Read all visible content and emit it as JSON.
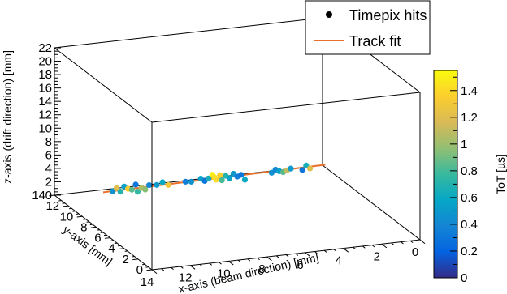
{
  "chart_data": {
    "type": "scatter",
    "projection": "3d-box",
    "axes": {
      "x": {
        "label": "x-axis (beam direction) [mm]",
        "range": [
          14,
          0
        ],
        "ticks": [
          "14",
          "12",
          "10",
          "8",
          "6",
          "4",
          "2",
          "0"
        ]
      },
      "y": {
        "label": "y-axis [mm]",
        "range": [
          0,
          14
        ],
        "ticks": [
          "0",
          "2",
          "4",
          "6",
          "8",
          "10",
          "12",
          "14"
        ]
      },
      "z": {
        "label": "z-axis (drift direction) [mm]",
        "range": [
          0,
          22
        ],
        "ticks": [
          "0",
          "2",
          "4",
          "6",
          "8",
          "10",
          "12",
          "14",
          "16",
          "18",
          "20",
          "22"
        ]
      }
    },
    "colorbar": {
      "label": "ToT [µs]",
      "range": [
        0,
        1.55
      ],
      "ticks": [
        "0",
        "0.2",
        "0.4",
        "0.6",
        "0.8",
        "1",
        "1.2",
        "1.4"
      ],
      "colors": [
        "#352a87",
        "#0363e1",
        "#1485d4",
        "#06a7c6",
        "#38b99e",
        "#92bf73",
        "#d9ba56",
        "#fcce2e",
        "#f9fb0e"
      ]
    },
    "legend": {
      "position": "top-right",
      "entries": [
        {
          "label": "Timepix hits",
          "marker": "dot",
          "color": "#000000"
        },
        {
          "label": "Track fit",
          "marker": "line",
          "color": "#e8702a"
        }
      ]
    },
    "series": [
      {
        "name": "Timepix hits",
        "points": [
          {
            "x": 13.5,
            "y": 7,
            "z": 6.0,
            "tot": 0.45
          },
          {
            "x": 13.3,
            "y": 7,
            "z": 6.4,
            "tot": 1.2
          },
          {
            "x": 13.1,
            "y": 7,
            "z": 5.8,
            "tot": 0.7
          },
          {
            "x": 12.9,
            "y": 7,
            "z": 6.5,
            "tot": 0.55
          },
          {
            "x": 12.7,
            "y": 7,
            "z": 6.1,
            "tot": 1.35
          },
          {
            "x": 12.5,
            "y": 7,
            "z": 5.9,
            "tot": 0.85
          },
          {
            "x": 12.3,
            "y": 7,
            "z": 6.6,
            "tot": 0.3
          },
          {
            "x": 12.2,
            "y": 7,
            "z": 5.5,
            "tot": 0.75
          },
          {
            "x": 12.0,
            "y": 7,
            "z": 6.0,
            "tot": 1.05
          },
          {
            "x": 11.8,
            "y": 7,
            "z": 5.7,
            "tot": 0.95
          },
          {
            "x": 11.6,
            "y": 7,
            "z": 6.3,
            "tot": 0.4
          },
          {
            "x": 11.2,
            "y": 7,
            "z": 6.2,
            "tot": 0.5
          },
          {
            "x": 10.9,
            "y": 7,
            "z": 6.5,
            "tot": 0.6
          },
          {
            "x": 10.6,
            "y": 7,
            "z": 6.0,
            "tot": 1.3
          },
          {
            "x": 9.7,
            "y": 7,
            "z": 6.2,
            "tot": 0.35
          },
          {
            "x": 9.4,
            "y": 7,
            "z": 6.1,
            "tot": 0.45
          },
          {
            "x": 8.9,
            "y": 7,
            "z": 6.4,
            "tot": 0.55
          },
          {
            "x": 8.7,
            "y": 7,
            "z": 6.0,
            "tot": 0.3
          },
          {
            "x": 8.5,
            "y": 7,
            "z": 6.3,
            "tot": 0.65
          },
          {
            "x": 8.3,
            "y": 7,
            "z": 6.8,
            "tot": 1.5
          },
          {
            "x": 8.2,
            "y": 7,
            "z": 6.4,
            "tot": 1.45
          },
          {
            "x": 8.1,
            "y": 7,
            "z": 6.0,
            "tot": 1.4
          },
          {
            "x": 7.9,
            "y": 7,
            "z": 6.6,
            "tot": 1.35
          },
          {
            "x": 7.8,
            "y": 7,
            "z": 5.8,
            "tot": 0.8
          },
          {
            "x": 7.6,
            "y": 7,
            "z": 6.4,
            "tot": 0.7
          },
          {
            "x": 7.4,
            "y": 7,
            "z": 6.0,
            "tot": 0.55
          },
          {
            "x": 7.2,
            "y": 7,
            "z": 6.6,
            "tot": 0.5
          },
          {
            "x": 7.0,
            "y": 7,
            "z": 6.1,
            "tot": 0.35
          },
          {
            "x": 6.8,
            "y": 7,
            "z": 6.3,
            "tot": 0.3
          },
          {
            "x": 6.6,
            "y": 7,
            "z": 5.5,
            "tot": 0.6
          },
          {
            "x": 5.2,
            "y": 7,
            "z": 6.1,
            "tot": 0.45
          },
          {
            "x": 5.0,
            "y": 7,
            "z": 6.5,
            "tot": 0.4
          },
          {
            "x": 4.8,
            "y": 7,
            "z": 6.2,
            "tot": 0.55
          },
          {
            "x": 4.6,
            "y": 7,
            "z": 6.0,
            "tot": 0.85
          },
          {
            "x": 4.4,
            "y": 7,
            "z": 6.2,
            "tot": 1.1
          },
          {
            "x": 4.2,
            "y": 7,
            "z": 6.4,
            "tot": 0.5
          },
          {
            "x": 3.6,
            "y": 7,
            "z": 6.0,
            "tot": 0.3
          },
          {
            "x": 3.4,
            "y": 7,
            "z": 6.6,
            "tot": 0.65
          },
          {
            "x": 3.2,
            "y": 7,
            "z": 6.1,
            "tot": 1.2
          }
        ]
      },
      {
        "name": "Track fit",
        "line": [
          {
            "x": 14,
            "y": 7,
            "z": 6.0
          },
          {
            "x": 2.4,
            "y": 7,
            "z": 6.4
          }
        ]
      }
    ]
  }
}
